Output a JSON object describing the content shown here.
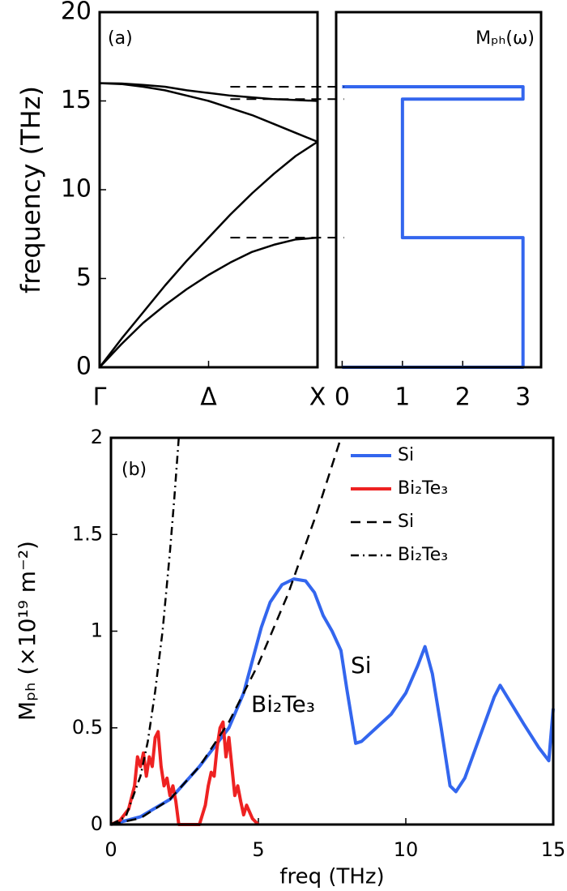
{
  "chart_data": [
    {
      "type": "line",
      "ylabel": "frequency (THz)",
      "annotation": "(a)",
      "xlim": [
        0,
        1
      ],
      "xticks": [
        {
          "value": 0,
          "label": "Γ"
        },
        {
          "value": 0.5,
          "label": "Δ"
        },
        {
          "value": 1,
          "label": "X"
        }
      ],
      "ylim": [
        0,
        20
      ],
      "yticks": [
        0,
        5,
        10,
        15,
        20
      ],
      "x": [
        0,
        0.1,
        0.2,
        0.3,
        0.4,
        0.5,
        0.6,
        0.7,
        0.8,
        0.9,
        1
      ],
      "series": [
        {
          "color": "#000000",
          "linestyle": "solid",
          "values": [
            0,
            1.3,
            2.5,
            3.5,
            4.4,
            5.2,
            5.9,
            6.5,
            6.9,
            7.2,
            7.3
          ]
        },
        {
          "color": "#000000",
          "linestyle": "solid",
          "values": [
            0,
            1.6,
            3.1,
            4.6,
            6.0,
            7.3,
            8.6,
            9.8,
            10.9,
            11.9,
            12.7
          ]
        },
        {
          "color": "#000000",
          "linestyle": "solid",
          "values": [
            16.0,
            15.95,
            15.8,
            15.6,
            15.3,
            15.0,
            14.6,
            14.2,
            13.7,
            13.2,
            12.7
          ]
        },
        {
          "color": "#000000",
          "linestyle": "solid",
          "values": [
            16.0,
            15.98,
            15.9,
            15.8,
            15.6,
            15.45,
            15.3,
            15.2,
            15.1,
            15.05,
            15.0
          ]
        }
      ]
    },
    {
      "type": "line",
      "annotation": "Mₚₕ(ω)",
      "xlim": [
        -0.1,
        3.3
      ],
      "xticks": [
        0,
        1,
        2,
        3
      ],
      "ylim": [
        0,
        20
      ],
      "series": [
        {
          "color": "#3366ee",
          "linestyle": "solid",
          "x": [
            0,
            3,
            3,
            1,
            1,
            3,
            3,
            0
          ],
          "values": [
            0,
            0,
            7.3,
            7.3,
            15.1,
            15.1,
            15.8,
            15.8
          ]
        }
      ]
    },
    {
      "type": "line",
      "xlabel": "freq (THz)",
      "ylabel": "Mₚₕ (×10¹⁹ m⁻²)",
      "annotations": [
        "(b)",
        "Si",
        "Bi₂Te₃"
      ],
      "xlim": [
        0,
        15
      ],
      "xticks": [
        0,
        5,
        10,
        15
      ],
      "ylim": [
        0,
        2
      ],
      "yticks": [
        0,
        0.5,
        1,
        1.5,
        2
      ],
      "legend": "upper right",
      "series": [
        {
          "name": "Si",
          "color": "#3366ee",
          "linestyle": "solid",
          "x": [
            0,
            1,
            2,
            3,
            3.5,
            4,
            4.5,
            4.8,
            5.1,
            5.4,
            5.8,
            6.2,
            6.6,
            6.9,
            7.2,
            7.5,
            7.8,
            8,
            8.3,
            8.5,
            9,
            9.5,
            10,
            10.4,
            10.65,
            10.9,
            11.2,
            11.5,
            11.7,
            12,
            12.5,
            13,
            13.2,
            13.6,
            14,
            14.5,
            14.85,
            15
          ],
          "values": [
            0,
            0.04,
            0.13,
            0.3,
            0.4,
            0.5,
            0.68,
            0.85,
            1.02,
            1.15,
            1.24,
            1.27,
            1.26,
            1.2,
            1.08,
            1.0,
            0.9,
            0.7,
            0.42,
            0.43,
            0.5,
            0.57,
            0.68,
            0.82,
            0.92,
            0.78,
            0.5,
            0.2,
            0.17,
            0.24,
            0.45,
            0.66,
            0.72,
            0.62,
            0.52,
            0.4,
            0.33,
            0.6
          ]
        },
        {
          "name": "Bi₂Te₃",
          "color": "#ee2222",
          "linestyle": "solid",
          "x": [
            0,
            0.3,
            0.6,
            0.8,
            0.9,
            1.0,
            1.1,
            1.2,
            1.3,
            1.4,
            1.5,
            1.6,
            1.7,
            1.8,
            1.9,
            2.0,
            2.1,
            2.2,
            2.3,
            3.0,
            3.2,
            3.3,
            3.4,
            3.5,
            3.6,
            3.7,
            3.8,
            3.9,
            4.0,
            4.1,
            4.2,
            4.3,
            4.4,
            4.5,
            4.6,
            4.8,
            5
          ],
          "values": [
            0,
            0.02,
            0.08,
            0.2,
            0.35,
            0.3,
            0.37,
            0.25,
            0.35,
            0.3,
            0.45,
            0.48,
            0.3,
            0.2,
            0.24,
            0.15,
            0.2,
            0.12,
            0,
            0,
            0.1,
            0.2,
            0.27,
            0.25,
            0.4,
            0.5,
            0.53,
            0.35,
            0.45,
            0.3,
            0.15,
            0.2,
            0.12,
            0.05,
            0.1,
            0.03,
            0
          ]
        },
        {
          "name": "Si",
          "color": "#000000",
          "linestyle": "dashed",
          "x": [
            0,
            1,
            2,
            3,
            4,
            5,
            6,
            7,
            7.8
          ],
          "values": [
            0,
            0.033,
            0.13,
            0.3,
            0.53,
            0.83,
            1.19,
            1.62,
            2.0
          ]
        },
        {
          "name": "Bi₂Te₃",
          "color": "#000000",
          "linestyle": "dashdot",
          "x": [
            0,
            0.5,
            1,
            1.25,
            1.5,
            1.75,
            2,
            2.15,
            2.3
          ],
          "values": [
            0,
            0.04,
            0.25,
            0.43,
            0.69,
            1.0,
            1.41,
            1.69,
            2.0
          ]
        }
      ]
    }
  ]
}
